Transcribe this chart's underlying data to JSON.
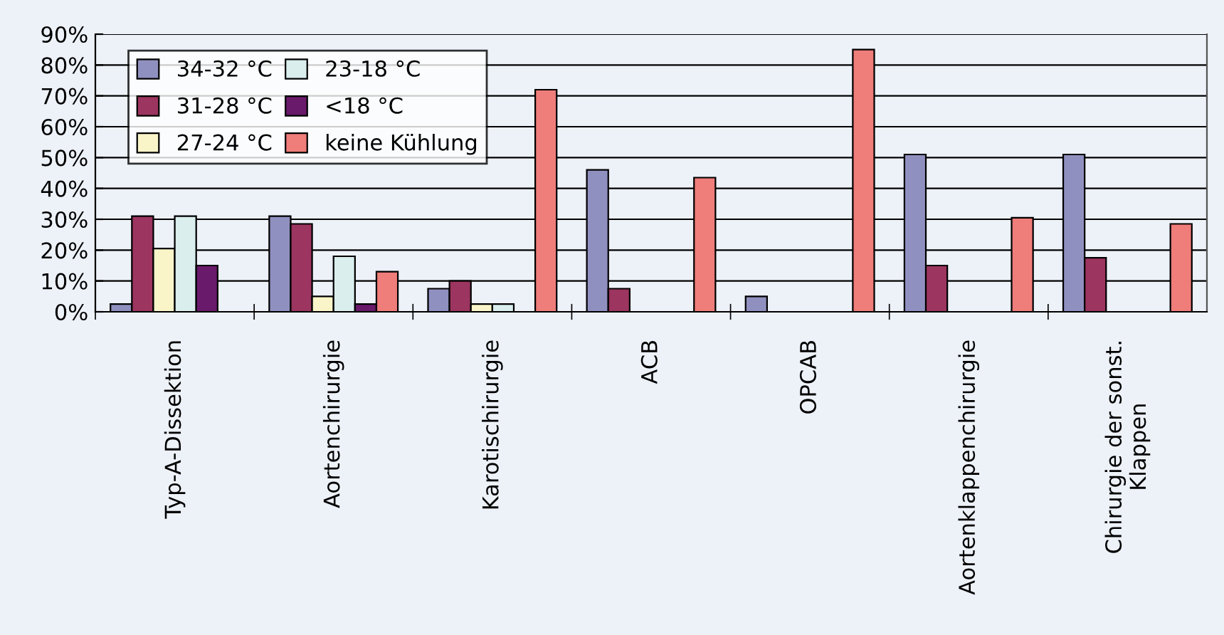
{
  "chart_data": {
    "type": "bar",
    "categories": [
      "Typ-A-Dissektion",
      "Aortenchirurgie",
      "Karotischirurgie",
      "ACB",
      "OPCAB",
      "Aortenklappenchirurgie",
      "Chirurgie der sonst.\nKlappen"
    ],
    "series": [
      {
        "name": "34-32 °C",
        "color": "#9090c0",
        "values": [
          2.5,
          31,
          7.5,
          46,
          5,
          51,
          51
        ]
      },
      {
        "name": "31-28 °C",
        "color": "#9c3560",
        "values": [
          31,
          28.5,
          10,
          7.5,
          null,
          15,
          17.5
        ]
      },
      {
        "name": "27-24 °C",
        "color": "#faf5c8",
        "values": [
          20.5,
          5,
          2.5,
          null,
          null,
          null,
          null
        ]
      },
      {
        "name": "23-18 °C",
        "color": "#daeeee",
        "values": [
          31,
          18,
          2.5,
          null,
          null,
          null,
          null
        ]
      },
      {
        "name": "<18 °C",
        "color": "#6a1a6a",
        "values": [
          15,
          2.5,
          null,
          null,
          null,
          null,
          null
        ]
      },
      {
        "name": "keine Kühlung",
        "color": "#ef7d7a",
        "values": [
          null,
          13,
          72,
          43.5,
          85,
          30.5,
          28.5
        ]
      }
    ],
    "ylim": [
      0,
      90
    ],
    "yticks": [
      {
        "value": 0,
        "label": "0%"
      },
      {
        "value": 10,
        "label": "10%"
      },
      {
        "value": 20,
        "label": "20%"
      },
      {
        "value": 30,
        "label": "30%"
      },
      {
        "value": 40,
        "label": "40%"
      },
      {
        "value": 50,
        "label": "50%"
      },
      {
        "value": 60,
        "label": "60%"
      },
      {
        "value": 70,
        "label": "70%"
      },
      {
        "value": 80,
        "label": "80%"
      },
      {
        "value": 90,
        "label": "90%"
      }
    ],
    "grid": "y",
    "legend": "top left"
  }
}
